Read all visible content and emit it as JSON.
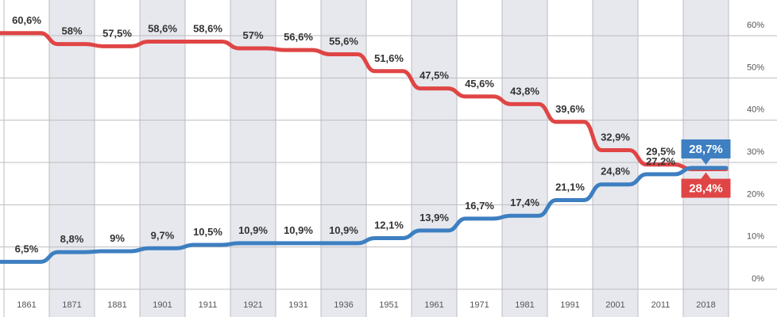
{
  "chart_data": {
    "type": "line",
    "title": "",
    "xlabel": "",
    "ylabel": "",
    "ylim": [
      0,
      60
    ],
    "y_ticks": [
      "60%",
      "50%",
      "40%",
      "30%",
      "20%",
      "10%",
      "0%"
    ],
    "y_tick_values": [
      60,
      50,
      40,
      30,
      20,
      10,
      0
    ],
    "grid": true,
    "categories": [
      "1861",
      "1871",
      "1881",
      "1901",
      "1911",
      "1921",
      "1931",
      "1936",
      "1951",
      "1961",
      "1971",
      "1981",
      "1991",
      "2001",
      "2011",
      "2018"
    ],
    "series": [
      {
        "color": "#e04545",
        "values": [
          60.6,
          58,
          57.5,
          58.6,
          58.6,
          57,
          56.6,
          55.6,
          51.6,
          47.5,
          45.6,
          43.8,
          39.6,
          32.9,
          29.5,
          28.4
        ],
        "labels": [
          "60,6%",
          "58%",
          "57,5%",
          "58,6%",
          "58,6%",
          "57%",
          "56,6%",
          "55,6%",
          "51,6%",
          "47,5%",
          "45,6%",
          "43,8%",
          "39,6%",
          "32,9%",
          "29,5%",
          "28,4%"
        ]
      },
      {
        "color": "#3d7fc1",
        "values": [
          6.5,
          8.8,
          9,
          9.7,
          10.5,
          10.9,
          10.9,
          10.9,
          12.1,
          13.9,
          16.7,
          17.4,
          21.1,
          24.8,
          27.2,
          28.7
        ],
        "labels": [
          "6,5%",
          "8,8%",
          "9%",
          "9,7%",
          "10,5%",
          "10,9%",
          "10,9%",
          "10,9%",
          "12,1%",
          "13,9%",
          "16,7%",
          "17,4%",
          "21,1%",
          "24,8%",
          "27,2%",
          "28,7%"
        ]
      }
    ],
    "colors": {
      "band_shaded": "#e6e8ee",
      "band_plain": "#ffffff",
      "grid": "#bdbdbd",
      "red": "#e04545",
      "blue": "#3d7fc1"
    }
  }
}
